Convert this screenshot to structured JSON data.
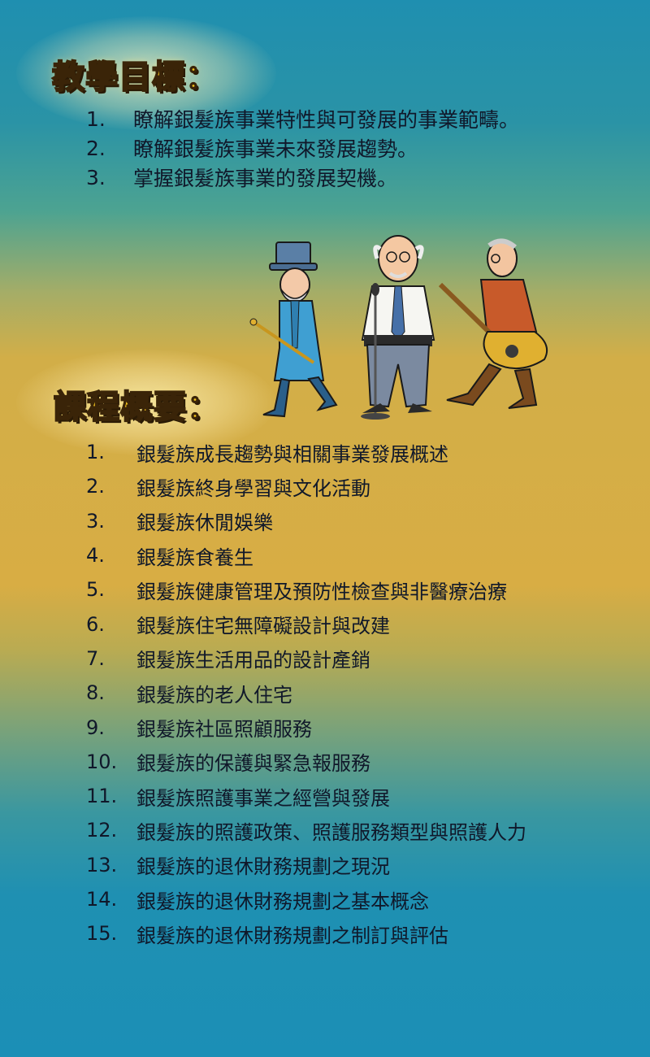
{
  "objectives": {
    "heading": "教學目標：",
    "items": [
      {
        "num": "1.",
        "text": "瞭解銀髮族事業特性與可發展的事業範疇。"
      },
      {
        "num": "2.",
        "text": "瞭解銀髮族事業未來發展趨勢。"
      },
      {
        "num": "3.",
        "text": "掌握銀髮族事業的發展契機。"
      }
    ]
  },
  "course": {
    "heading": "課程概要：",
    "items": [
      {
        "num": "1.",
        "text": "銀髮族成長趨勢與相關事業發展概述"
      },
      {
        "num": "2.",
        "text": "銀髮族終身學習與文化活動"
      },
      {
        "num": "3.",
        "text": "銀髮族休閒娛樂"
      },
      {
        "num": "4.",
        "text": "銀髮族食養生"
      },
      {
        "num": "5.",
        "text": "銀髮族健康管理及預防性檢查與非醫療治療"
      },
      {
        "num": "6.",
        "text": "銀髮族住宅無障礙設計與改建"
      },
      {
        "num": "7.",
        "text": "銀髮族生活用品的設計產銷"
      },
      {
        "num": "8.",
        "text": "銀髮族的老人住宅"
      },
      {
        "num": "9.",
        "text": "銀髮族社區照顧服務"
      },
      {
        "num": "10.",
        "text": "銀髮族的保護與緊急報服務"
      },
      {
        "num": "11.",
        "text": "銀髮族照護事業之經營與發展"
      },
      {
        "num": "12.",
        "text": "銀髮族的照護政策、照護服務類型與照護人力"
      },
      {
        "num": "13.",
        "text": "銀髮族的退休財務規劃之現況"
      },
      {
        "num": "14.",
        "text": "銀髮族的退休財務規劃之基本概念"
      },
      {
        "num": "15.",
        "text": "銀髮族的退休財務規劃之制訂與評估"
      }
    ]
  },
  "colors": {
    "heading_fill": "#f2c21c",
    "heading_outline": "#3a2408",
    "text": "#10182a"
  },
  "illustration": {
    "icon": "three-elderly-musicians-illustration"
  }
}
